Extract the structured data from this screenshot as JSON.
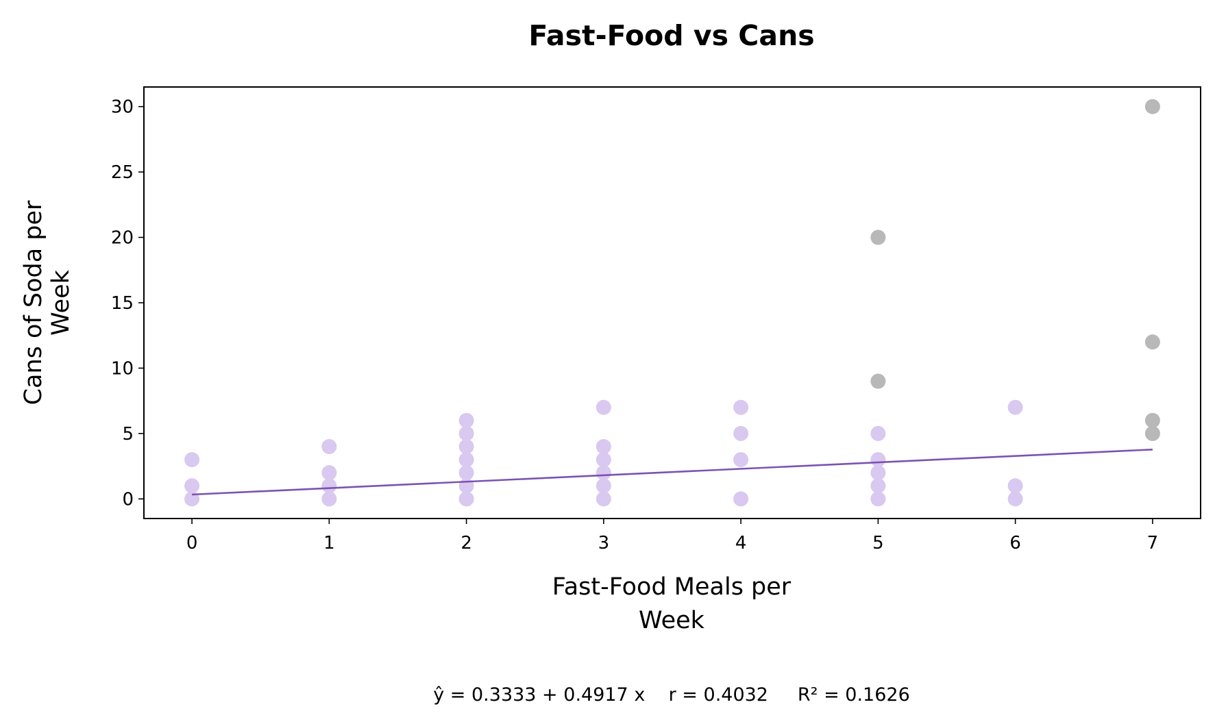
{
  "chart_data": {
    "type": "scatter",
    "title": "Fast-Food vs Cans",
    "xlabel_lines": [
      "Fast-Food Meals per",
      "Week"
    ],
    "ylabel_lines": [
      "Cans of Soda per",
      "Week"
    ],
    "xlim": [
      -0.35,
      7.35
    ],
    "ylim": [
      -1.5,
      31.5
    ],
    "xticks": [
      0,
      1,
      2,
      3,
      4,
      5,
      6,
      7
    ],
    "yticks": [
      0,
      5,
      10,
      15,
      20,
      25,
      30
    ],
    "grid": false,
    "colors": {
      "points": "#d9c8f0",
      "outliers": "#b8b8b8",
      "fit_line": "#7b52b3"
    },
    "points": [
      [
        0,
        0
      ],
      [
        0,
        1
      ],
      [
        0,
        3
      ],
      [
        1,
        0
      ],
      [
        1,
        1
      ],
      [
        1,
        2
      ],
      [
        1,
        4
      ],
      [
        2,
        0
      ],
      [
        2,
        1
      ],
      [
        2,
        2
      ],
      [
        2,
        3
      ],
      [
        2,
        4
      ],
      [
        2,
        5
      ],
      [
        2,
        6
      ],
      [
        3,
        0
      ],
      [
        3,
        1
      ],
      [
        3,
        2
      ],
      [
        3,
        3
      ],
      [
        3,
        4
      ],
      [
        3,
        7
      ],
      [
        4,
        0
      ],
      [
        4,
        3
      ],
      [
        4,
        5
      ],
      [
        4,
        7
      ],
      [
        5,
        0
      ],
      [
        5,
        1
      ],
      [
        5,
        2
      ],
      [
        5,
        3
      ],
      [
        5,
        5
      ],
      [
        6,
        0
      ],
      [
        6,
        1
      ],
      [
        6,
        7
      ]
    ],
    "outliers": [
      [
        5,
        9
      ],
      [
        5,
        20
      ],
      [
        7,
        5
      ],
      [
        7,
        6
      ],
      [
        7,
        12
      ],
      [
        7,
        30
      ]
    ],
    "fit": {
      "intercept": 0.3333,
      "slope": 0.4917,
      "x_range": [
        0,
        7
      ]
    },
    "stats_text": "ŷ = 0.3333 + 0.4917 x    r = 0.4032     R² = 0.1626"
  }
}
